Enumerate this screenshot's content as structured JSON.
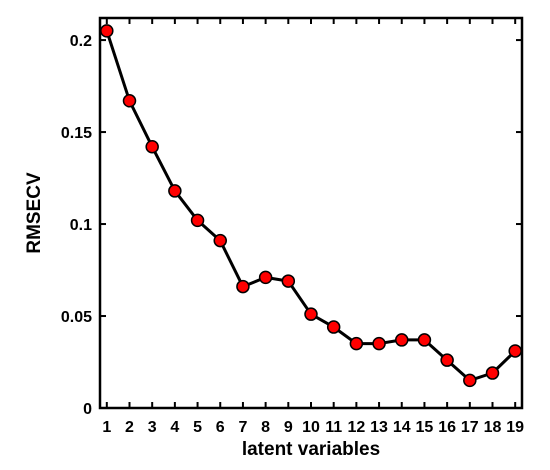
{
  "chart_data": {
    "type": "line",
    "title": "",
    "xlabel": "latent variables",
    "ylabel": "RMSECV",
    "x": [
      1,
      2,
      3,
      4,
      5,
      6,
      7,
      8,
      9,
      10,
      11,
      12,
      13,
      14,
      15,
      16,
      17,
      18,
      19
    ],
    "series": [
      {
        "values": [
          0.205,
          0.167,
          0.142,
          0.118,
          0.102,
          0.091,
          0.066,
          0.071,
          0.069,
          0.051,
          0.044,
          0.035,
          0.035,
          0.037,
          0.037,
          0.026,
          0.015,
          0.019,
          0.031
        ]
      }
    ],
    "xlim": [
      0.7,
      19.3
    ],
    "ylim": [
      0,
      0.212
    ],
    "xticks": [
      1,
      2,
      3,
      4,
      5,
      6,
      7,
      8,
      9,
      10,
      11,
      12,
      13,
      14,
      15,
      16,
      17,
      18,
      19
    ],
    "yticks": [
      0,
      0.05,
      0.1,
      0.15,
      0.2
    ],
    "ytick_labels": [
      "0",
      "0.05",
      "0.1",
      "0.15",
      "0.2"
    ],
    "grid": false,
    "legend": "none",
    "colors": {
      "line": "#000000",
      "marker_fill": "#ff0000",
      "marker_stroke": "#000000",
      "axes": "#000000"
    }
  }
}
